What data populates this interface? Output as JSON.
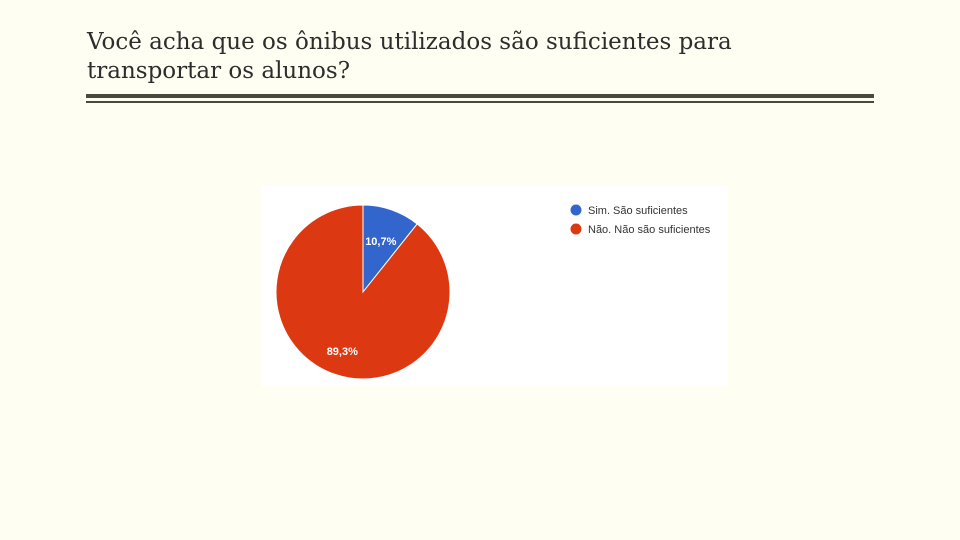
{
  "slide": {
    "title": "Você acha que os ônibus utilizados são suficientes para transportar os alunos?"
  },
  "colors": {
    "background": "#fefef2",
    "rule": "#4a4a3c",
    "sim": "#3366cc",
    "nao": "#dc3912"
  },
  "chart_data": {
    "type": "pie",
    "title": "",
    "slices": [
      {
        "label": "Sim. São suficientes",
        "value": 10.7,
        "display": "10,7%",
        "color": "#3366cc"
      },
      {
        "label": "Não. Não são suficientes",
        "value": 89.3,
        "display": "89,3%",
        "color": "#dc3912"
      }
    ],
    "start_angle_deg": 90,
    "direction": "clockwise",
    "legend": "top-right"
  }
}
